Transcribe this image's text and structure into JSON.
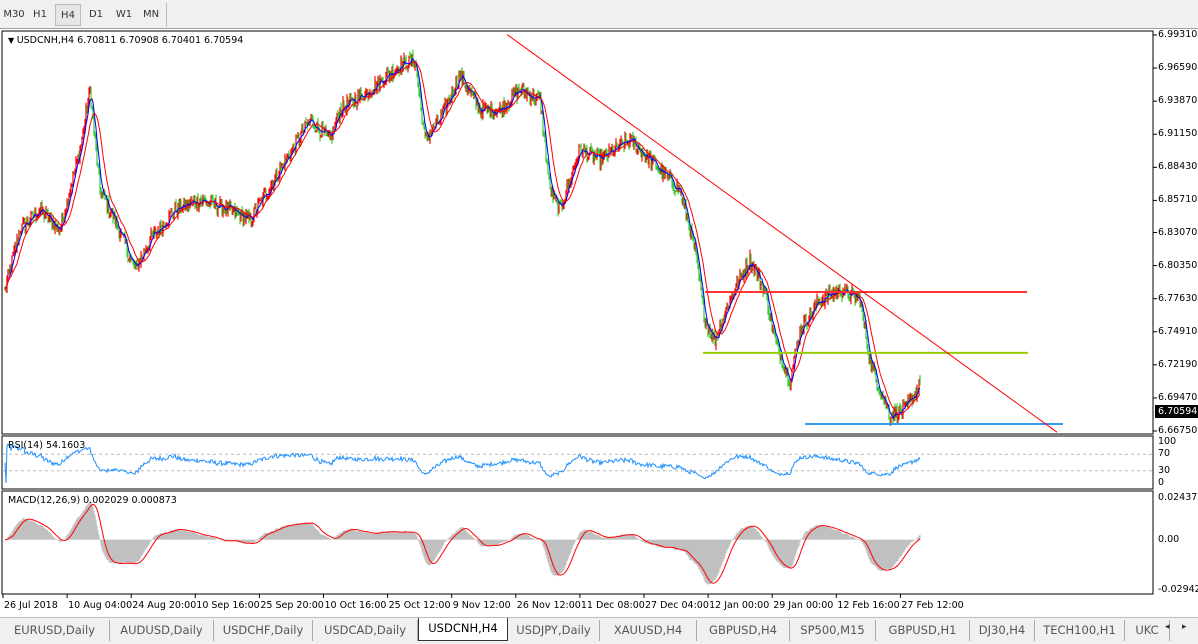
{
  "toolbar": {
    "timeframes": [
      {
        "label": "M30",
        "active": false
      },
      {
        "label": "H1",
        "active": false
      },
      {
        "label": "H4",
        "active": true
      },
      {
        "label": "D1",
        "active": false
      },
      {
        "label": "W1",
        "active": false
      },
      {
        "label": "MN",
        "active": false
      }
    ]
  },
  "chart": {
    "symbol_header": "USDCNH,H4  6.70811 6.70908 6.70401 6.70594",
    "current_price": "6.70594",
    "price_ticks": [
      "6.99310",
      "6.96590",
      "6.93870",
      "6.91150",
      "6.88430",
      "6.85710",
      "6.83070",
      "6.80350",
      "6.77630",
      "6.74910",
      "6.72190",
      "6.69470",
      "6.66750"
    ],
    "price_range": [
      6.6675,
      6.9931
    ],
    "date_ticks": [
      "26 Jul 2018",
      "10 Aug 04:00",
      "24 Aug 20:00",
      "10 Sep 16:00",
      "25 Sep 20:00",
      "10 Oct 16:00",
      "25 Oct 12:00",
      "9 Nov 12:00",
      "26 Nov 12:00",
      "11 Dec 08:00",
      "27 Dec 04:00",
      "12 Jan 00:00",
      "29 Jan 00:00",
      "12 Feb 16:00",
      "27 Feb 12:00"
    ],
    "colors": {
      "bar_up": "#ff0000",
      "bar_down": "#32cd32",
      "ma_fast": "#0000ff",
      "ma_slow": "#ff0000",
      "rsi": "#1e90ff",
      "macd_hist": "#c0c0c0",
      "macd_signal": "#ff0000"
    },
    "price_path": [
      [
        0,
        6.7835
      ],
      [
        15,
        6.8328
      ],
      [
        35,
        6.8493
      ],
      [
        55,
        6.8328
      ],
      [
        75,
        6.8986
      ],
      [
        85,
        6.9479
      ],
      [
        95,
        6.8657
      ],
      [
        110,
        6.841
      ],
      [
        130,
        6.8
      ],
      [
        145,
        6.8246
      ],
      [
        170,
        6.8493
      ],
      [
        195,
        6.8575
      ],
      [
        225,
        6.8493
      ],
      [
        245,
        6.841
      ],
      [
        275,
        6.8821
      ],
      [
        305,
        6.9232
      ],
      [
        325,
        6.9068
      ],
      [
        335,
        6.9315
      ],
      [
        365,
        6.9479
      ],
      [
        395,
        6.9684
      ],
      [
        410,
        6.9726
      ],
      [
        420,
        6.9068
      ],
      [
        435,
        6.9232
      ],
      [
        455,
        6.9602
      ],
      [
        475,
        6.9315
      ],
      [
        495,
        6.9315
      ],
      [
        515,
        6.9479
      ],
      [
        535,
        6.9397
      ],
      [
        545,
        6.8657
      ],
      [
        555,
        6.8493
      ],
      [
        575,
        6.8986
      ],
      [
        595,
        6.8904
      ],
      [
        625,
        6.9068
      ],
      [
        655,
        6.8821
      ],
      [
        675,
        6.8657
      ],
      [
        690,
        6.8164
      ],
      [
        700,
        6.7588
      ],
      [
        710,
        6.7424
      ],
      [
        725,
        6.7753
      ],
      [
        745,
        6.8082
      ],
      [
        760,
        6.7835
      ],
      [
        770,
        6.7424
      ],
      [
        785,
        6.7095
      ],
      [
        795,
        6.7506
      ],
      [
        815,
        6.7753
      ],
      [
        835,
        6.7835
      ],
      [
        855,
        6.7753
      ],
      [
        865,
        6.726
      ],
      [
        875,
        6.7013
      ],
      [
        885,
        6.6807
      ],
      [
        900,
        6.6849
      ],
      [
        915,
        6.7059
      ]
    ],
    "levels": [
      {
        "price": 6.7818,
        "color": "#ff3333",
        "from_bar": 700,
        "to_bar": 1022
      },
      {
        "price": 6.7317,
        "color": "#99cc00",
        "from_bar": 698,
        "to_bar": 1023
      },
      {
        "price": 6.6733,
        "color": "#3399ee",
        "from_bar": 800,
        "to_bar": 1058
      }
    ],
    "trendline": {
      "color": "#ff0000",
      "from": [
        502,
        6.9935
      ],
      "to": [
        1052,
        6.6665
      ]
    }
  },
  "rsi": {
    "label": "RSI(14) 54.1603",
    "ticks": [
      "100",
      "70",
      "30",
      "0"
    ]
  },
  "macd": {
    "label": "MACD(12,26,9) 0.002029 0.000873",
    "ticks": [
      "0.024372",
      "0.00",
      "-0.029423"
    ],
    "range": [
      -0.029423,
      0.024372
    ]
  },
  "tabs": [
    {
      "label": "EURUSD,Daily"
    },
    {
      "label": "AUDUSD,Daily"
    },
    {
      "label": "USDCHF,Daily"
    },
    {
      "label": "USDCAD,Daily"
    },
    {
      "label": "USDCNH,H4",
      "active": true
    },
    {
      "label": "USDJPY,Daily"
    },
    {
      "label": "XAUUSD,H4"
    },
    {
      "label": "GBPUSD,H4"
    },
    {
      "label": "SP500,M15"
    },
    {
      "label": "GBPUSD,H1"
    },
    {
      "label": "DJ30,H4"
    },
    {
      "label": "TECH100,H1"
    },
    {
      "label": "UKC"
    }
  ]
}
